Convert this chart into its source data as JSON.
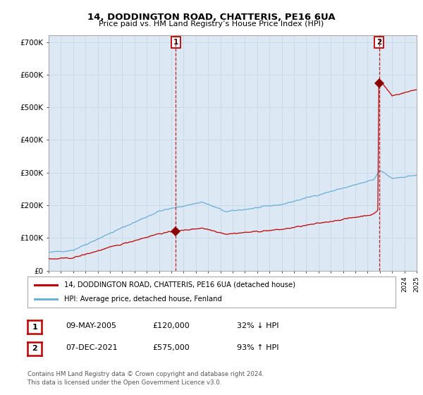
{
  "title": "14, DODDINGTON ROAD, CHATTERIS, PE16 6UA",
  "subtitle": "Price paid vs. HM Land Registry’s House Price Index (HPI)",
  "ylim": [
    0,
    720000
  ],
  "yticks": [
    0,
    100000,
    200000,
    300000,
    400000,
    500000,
    600000,
    700000
  ],
  "ytick_labels": [
    "£0",
    "£100K",
    "£200K",
    "£300K",
    "£400K",
    "£500K",
    "£600K",
    "£700K"
  ],
  "sale1_year": 2005.36,
  "sale1_price": 120000,
  "sale2_year": 2021.93,
  "sale2_price": 575000,
  "hpi_line_color": "#6baed6",
  "price_line_color": "#c00000",
  "sale_marker_color": "#8b0000",
  "vline_color": "#c00000",
  "grid_color": "#c8d8e8",
  "background_color": "#dce8f4",
  "plot_bg_color": "#dce8f4",
  "legend_bg": "#ffffff",
  "legend_entry1": "14, DODDINGTON ROAD, CHATTERIS, PE16 6UA (detached house)",
  "legend_entry2": "HPI: Average price, detached house, Fenland",
  "footer1": "Contains HM Land Registry data © Crown copyright and database right 2024.",
  "footer2": "This data is licensed under the Open Government Licence v3.0.",
  "table_row1": [
    "1",
    "09-MAY-2005",
    "£120,000",
    "32% ↓ HPI"
  ],
  "table_row2": [
    "2",
    "07-DEC-2021",
    "£575,000",
    "93% ↑ HPI"
  ]
}
